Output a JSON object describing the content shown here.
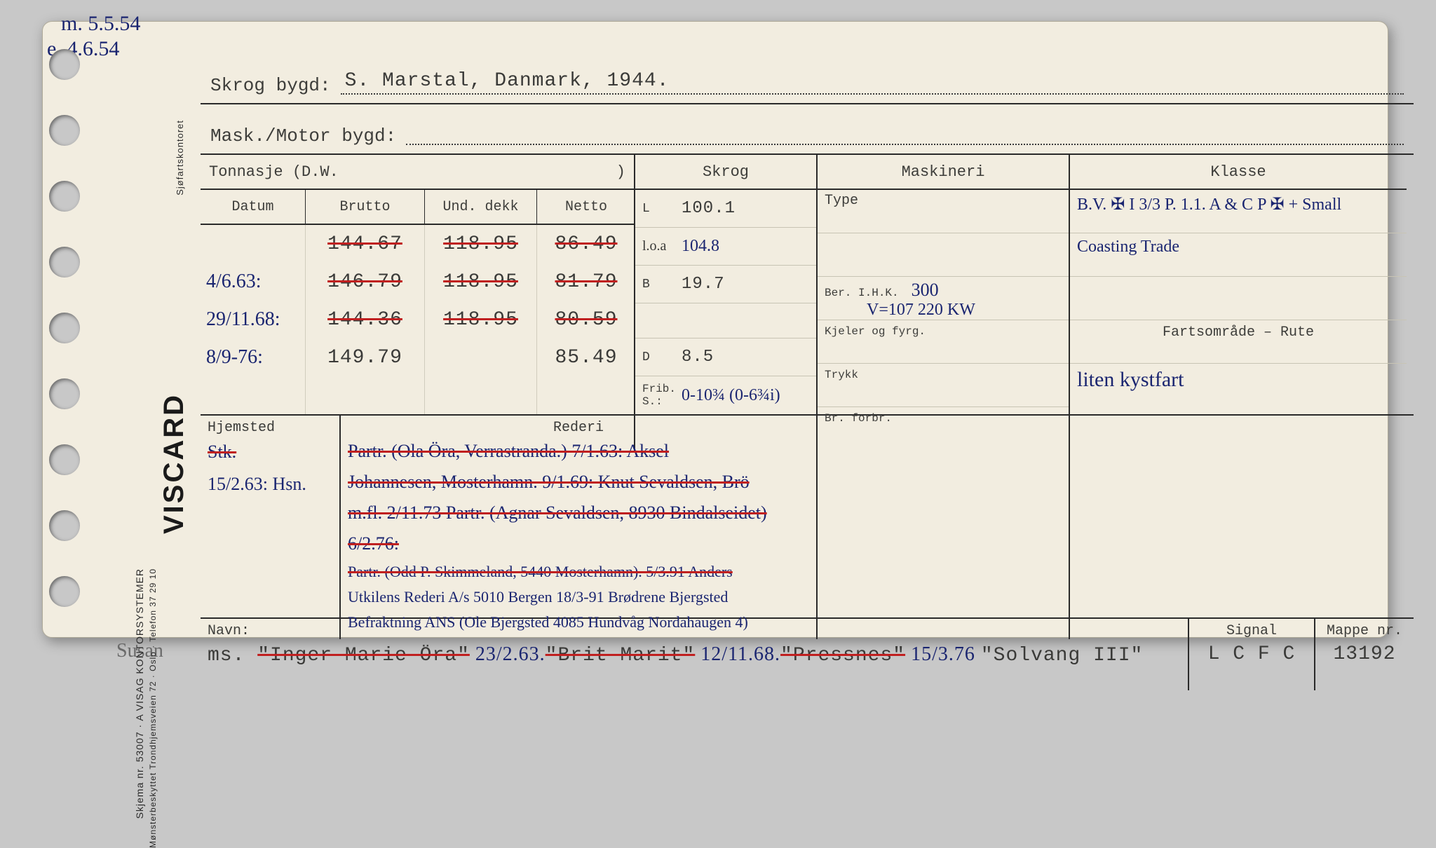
{
  "margin_notes": {
    "top": "m. 5.5.54",
    "below": "e. 4.6.54"
  },
  "sideprint": {
    "viscard": "VISCARD",
    "line1": "Skjema nr. 53007 · A  VISAG  KONTORSYSTEMER",
    "line2": "Mønsterbeskyttet   Trondhjemsveien 72 · Oslo · Telefon 37 29 10",
    "rightlabel": "Sjøfartskontoret"
  },
  "header": {
    "skrog_label": "Skrog bygd:",
    "skrog_value": "S. Marstal, Danmark, 1944.",
    "motor_label": "Mask./Motor bygd:",
    "motor_value": ""
  },
  "tonnasje": {
    "title": "Tonnasje (D.W.",
    "title_close": ")",
    "cols": {
      "datum": "Datum",
      "brutto": "Brutto",
      "und": "Und. dekk",
      "netto": "Netto"
    },
    "rows": [
      {
        "datum": "",
        "brutto": "144.67",
        "und": "118.95",
        "netto": "86.49",
        "struck": true
      },
      {
        "datum": "4/6.63:",
        "brutto": "146.79",
        "und": "118.95",
        "netto": "81.79",
        "struck": true
      },
      {
        "datum": "29/11.68:",
        "brutto": "144.36",
        "und": "118.95",
        "netto": "80.59",
        "struck": true
      },
      {
        "datum": "8/9-76:",
        "brutto": "149.79",
        "und": "",
        "netto": "85.49",
        "struck": false
      }
    ]
  },
  "skrog": {
    "title": "Skrog",
    "L_label": "L",
    "L": "100.1",
    "loa_label": "l.o.a",
    "loa": "104.8",
    "B_label": "B",
    "B": "19.7",
    "D_label": "D",
    "D": "8.5",
    "frib_label": "Frib. S.:",
    "frib": "0-10¾ (0-6¾i)"
  },
  "maskineri": {
    "title": "Maskineri",
    "type_label": "Type",
    "type": "",
    "ihk_label": "Ber. I.H.K.",
    "ihk": "300",
    "ihk_note": "V=107  220 KW",
    "kjeler_label": "Kjeler og fyrg.",
    "trykk_label": "Trykk",
    "forbr_label": "Br. forbr."
  },
  "klasse": {
    "title": "Klasse",
    "line1": "B.V. ✠ I 3/3  P. 1.1.  A & C P  ✠ + Small",
    "line2": "Coasting Trade",
    "fart_label": "Fartsområde – Rute",
    "fart": "liten kystfart"
  },
  "hjemsted": {
    "label": "Hjemsted",
    "rederi_label": "Rederi",
    "col1": [
      "Stk.",
      "15/2.63:  Hsn."
    ],
    "rederi_lines": [
      "Partr. (Ola Öra, Verrastranda.) 7/1.63: Aksel",
      "Johannesen, Mosterhamn. 9/1.69: Knut Sevaldsen, Brö",
      "m.fl. 2/11.73 Partr. (Agnar Sevaldsen, 8930 Bindalseidet) 6/2.76:",
      "Partr. (Odd P. Skimmeland, 5440 Mosterhamn). 5/3.91 Anders",
      "Utkilens Rederi A/s 5010 Bergen 18/3-91 Brødrene Bjergsted",
      "Befraktning ANS (Ole Bjergsted 4085 Hundvåg Nordahaugen 4)"
    ]
  },
  "navn": {
    "label": "Navn:",
    "susan": "Susan",
    "value": "ms. \"Inger Marie Öra\" 23/2.63.\"Brit Marit\" 12/11.68.\"Pressnes\" 15/3.76 \"Solvang III\"",
    "signal_label": "Signal",
    "signal": "L C F C",
    "mappe_label": "Mappe nr.",
    "mappe": "13192"
  },
  "colors": {
    "paper": "#f2ede0",
    "ink_print": "#3a3a38",
    "ink_pen": "#1a2570",
    "strike": "#c02020",
    "bg": "#c8c8c8"
  }
}
